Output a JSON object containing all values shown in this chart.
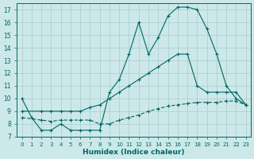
{
  "background_color": "#cce8e8",
  "grid_color": "#aacccc",
  "line_color": "#006666",
  "xlabel": "Humidex (Indice chaleur)",
  "xlim": [
    -0.5,
    23.5
  ],
  "ylim": [
    7,
    17.5
  ],
  "yticks": [
    7,
    8,
    9,
    10,
    11,
    12,
    13,
    14,
    15,
    16,
    17
  ],
  "xticks": [
    0,
    1,
    2,
    3,
    4,
    5,
    6,
    7,
    8,
    9,
    10,
    11,
    12,
    13,
    14,
    15,
    16,
    17,
    18,
    19,
    20,
    21,
    22,
    23
  ],
  "line1_x": [
    0,
    1,
    2,
    3,
    4,
    5,
    6,
    7,
    8,
    9,
    10,
    11,
    12,
    13,
    14,
    15,
    16,
    17,
    18,
    19,
    20,
    21,
    22,
    23
  ],
  "line1_y": [
    10.0,
    8.5,
    7.5,
    7.5,
    8.0,
    7.5,
    7.5,
    7.5,
    7.5,
    10.5,
    11.5,
    13.5,
    16.0,
    13.5,
    14.8,
    16.5,
    17.2,
    17.2,
    17.0,
    15.5,
    13.5,
    11.0,
    10.0,
    9.5
  ],
  "line2_x": [
    0,
    2,
    3,
    4,
    5,
    6,
    7,
    8,
    9,
    10,
    11,
    12,
    13,
    14,
    15,
    16,
    17,
    18,
    19,
    20,
    21,
    22,
    23
  ],
  "line2_y": [
    9.0,
    9.0,
    9.0,
    9.0,
    9.0,
    9.0,
    9.3,
    9.5,
    10.0,
    10.5,
    11.0,
    11.5,
    12.0,
    12.5,
    13.0,
    13.5,
    13.5,
    11.0,
    10.5,
    10.5,
    10.5,
    10.5,
    9.5
  ],
  "line3_x": [
    0,
    2,
    3,
    4,
    5,
    6,
    7,
    8,
    9,
    10,
    11,
    12,
    13,
    14,
    15,
    16,
    17,
    18,
    19,
    20,
    21,
    22,
    23
  ],
  "line3_y": [
    8.5,
    8.3,
    8.2,
    8.3,
    8.3,
    8.3,
    8.3,
    8.0,
    8.0,
    8.3,
    8.5,
    8.7,
    9.0,
    9.2,
    9.4,
    9.5,
    9.6,
    9.7,
    9.7,
    9.7,
    9.8,
    9.8,
    9.5
  ]
}
